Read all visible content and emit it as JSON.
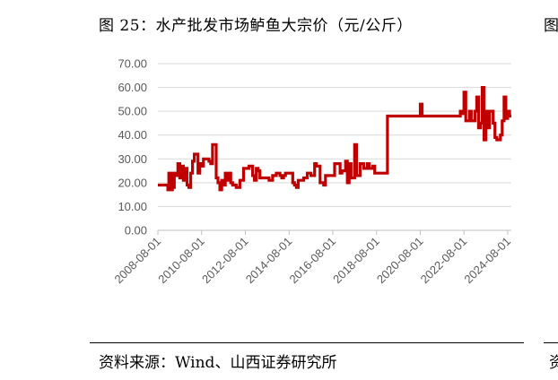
{
  "title": "图 25：水产批发市场鲈鱼大宗价（元/公斤）",
  "next_title_fragment": "图",
  "source": "资料来源：Wind、山西证券研究所",
  "next_source_fragment": "资",
  "colors": {
    "line": "#c00000",
    "grid": "#d9d9d9",
    "axis": "#bfbfbf",
    "tick": "#595959"
  },
  "chart_data": {
    "type": "line",
    "title": "水产批发市场鲈鱼大宗价（元/公斤）",
    "xlabel": "",
    "ylabel": "",
    "ylim": [
      0,
      70
    ],
    "yticks": [
      0,
      10,
      20,
      30,
      40,
      50,
      60,
      70
    ],
    "ytick_labels": [
      "0.00",
      "10.00",
      "20.00",
      "30.00",
      "40.00",
      "50.00",
      "60.00",
      "70.00"
    ],
    "xlim": [
      "2008-08-01",
      "2024-10-01"
    ],
    "xticks": [
      "2008-08-01",
      "2010-08-01",
      "2012-08-01",
      "2014-08-01",
      "2016-08-01",
      "2018-08-01",
      "2020-08-01",
      "2022-08-01",
      "2024-08-01"
    ],
    "grid": "horizontal",
    "legend": "none",
    "series": [
      {
        "x": [
          "2008-08-01",
          "2009-01-01",
          "2009-01-15",
          "2009-02-01",
          "2009-02-15",
          "2009-03-01",
          "2009-03-15",
          "2009-04-01",
          "2009-04-15",
          "2009-05-01",
          "2009-06-01",
          "2009-07-01",
          "2009-08-01",
          "2009-09-01",
          "2009-10-01",
          "2009-11-01",
          "2009-12-01",
          "2010-01-01",
          "2010-02-01",
          "2010-03-01",
          "2010-04-01",
          "2010-05-01",
          "2010-06-01",
          "2010-07-01",
          "2010-08-01",
          "2010-09-01",
          "2010-10-01",
          "2010-11-01",
          "2010-12-01",
          "2011-01-01",
          "2011-02-01",
          "2011-03-01",
          "2011-04-01",
          "2011-05-01",
          "2011-06-01",
          "2011-07-01",
          "2011-08-01",
          "2011-09-01",
          "2011-10-01",
          "2011-11-01",
          "2011-12-01",
          "2012-01-01",
          "2012-03-01",
          "2012-04-01",
          "2012-05-01",
          "2012-06-01",
          "2012-07-01",
          "2012-08-01",
          "2012-09-01",
          "2012-10-01",
          "2012-11-01",
          "2012-12-01",
          "2013-01-01",
          "2013-02-01",
          "2013-03-01",
          "2013-04-01",
          "2013-05-01",
          "2013-06-01",
          "2013-09-01",
          "2013-11-01",
          "2014-01-01",
          "2014-03-01",
          "2014-04-01",
          "2014-05-01",
          "2014-06-01",
          "2014-09-01",
          "2014-10-01",
          "2014-11-01",
          "2014-12-01",
          "2015-01-01",
          "2015-03-01",
          "2015-04-01",
          "2015-06-01",
          "2015-08-01",
          "2015-10-01",
          "2015-11-01",
          "2016-01-01",
          "2016-03-01",
          "2016-04-01",
          "2016-06-01",
          "2016-09-01",
          "2016-12-01",
          "2017-01-01",
          "2017-03-01",
          "2017-04-01",
          "2017-05-01",
          "2017-06-01",
          "2017-08-01",
          "2017-09-01",
          "2017-11-01",
          "2018-01-01",
          "2018-02-01",
          "2018-03-01",
          "2018-04-01",
          "2018-05-01",
          "2018-06-01",
          "2018-07-01",
          "2018-08-01",
          "2018-09-01",
          "2018-10-01",
          "2018-12-01",
          "2019-01-01",
          "2019-02-01",
          "2019-06-01",
          "2020-03-01",
          "2020-08-01",
          "2020-09-01",
          "2022-03-01",
          "2022-04-01",
          "2022-05-01",
          "2022-06-01",
          "2022-07-01",
          "2022-08-01",
          "2022-09-01",
          "2022-10-01",
          "2022-11-01",
          "2022-12-01",
          "2023-01-01",
          "2023-02-01",
          "2023-03-01",
          "2023-04-01",
          "2023-05-01",
          "2023-06-01",
          "2023-07-01",
          "2023-08-01",
          "2023-09-01",
          "2023-10-01",
          "2023-11-01",
          "2023-12-01",
          "2024-01-01",
          "2024-02-01",
          "2024-03-01",
          "2024-04-01",
          "2024-05-01",
          "2024-06-01",
          "2024-07-01",
          "2024-08-01",
          "2024-09-01"
        ],
        "y": [
          19,
          19,
          17,
          24,
          17,
          24,
          17,
          24,
          18,
          24,
          23,
          28,
          22,
          27,
          21,
          26,
          19,
          18,
          24,
          29,
          32,
          32,
          24,
          28,
          27,
          30,
          30,
          30,
          29,
          28,
          36,
          36,
          22,
          20,
          17,
          21,
          19,
          24,
          21,
          24,
          20,
          19,
          18,
          18,
          21,
          21,
          26,
          26,
          26,
          27,
          27,
          23,
          21,
          26,
          25,
          22,
          22,
          22,
          21,
          23,
          24,
          23,
          22,
          23,
          24,
          24,
          20,
          19,
          18,
          21,
          21,
          22,
          24,
          23,
          28,
          27,
          20,
          19,
          23,
          23,
          28,
          24,
          25,
          29,
          20,
          28,
          22,
          36,
          23,
          28,
          26,
          26,
          28,
          26,
          26,
          27,
          24,
          24,
          24,
          24,
          24,
          24,
          48,
          48,
          48,
          53,
          48,
          48,
          48,
          48,
          50,
          49,
          58,
          46,
          46,
          50,
          46,
          46,
          50,
          56,
          43,
          45,
          60,
          38,
          50,
          43,
          50,
          50,
          45,
          39,
          38,
          38,
          40,
          46,
          56,
          47,
          50,
          48
        ]
      }
    ]
  }
}
